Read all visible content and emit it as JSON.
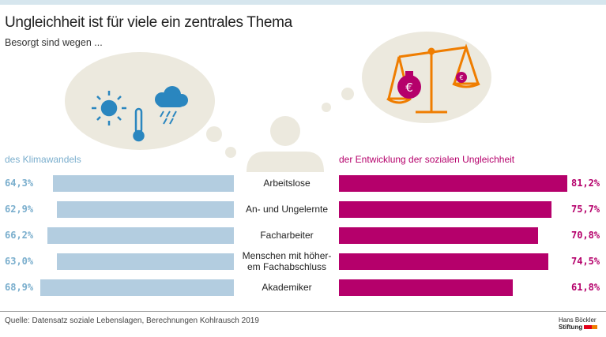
{
  "header": {
    "title": "Ungleichheit ist für viele ein zentrales Thema",
    "subtitle": "Besorgt sind wegen ..."
  },
  "chart_data": {
    "type": "bar",
    "categories": [
      "Arbeitslose",
      "An- und Ungelernte",
      "Facharbeiter",
      "Menschen mit höher-\nem Fachabschluss",
      "Akademiker"
    ],
    "series": [
      {
        "name": "des Klimawandels",
        "values": [
          64.3,
          62.9,
          66.2,
          63.0,
          68.9
        ],
        "labels": [
          "64,3%",
          "62,9%",
          "66,2%",
          "63,0%",
          "68,9%"
        ],
        "color": "#b3cde0",
        "text_color": "#7aaecd"
      },
      {
        "name": "der Entwicklung der sozialen Ungleichheit",
        "values": [
          81.2,
          75.7,
          70.8,
          74.5,
          61.8
        ],
        "labels": [
          "81,2%",
          "75,7%",
          "70,8%",
          "74,5%",
          "61,8%"
        ],
        "color": "#b5006b",
        "text_color": "#b5006b"
      }
    ],
    "unit": "%"
  },
  "footer": {
    "source": "Quelle: Datensatz soziale Lebenslagen, Berechnungen Kohlrausch 2019",
    "logo_line1": "Hans Böckler",
    "logo_line2": "Stiftung"
  },
  "colors": {
    "bubble": "#ece9de",
    "orange": "#ef7d00",
    "magenta": "#b5006b",
    "blue": "#2a86bf"
  }
}
